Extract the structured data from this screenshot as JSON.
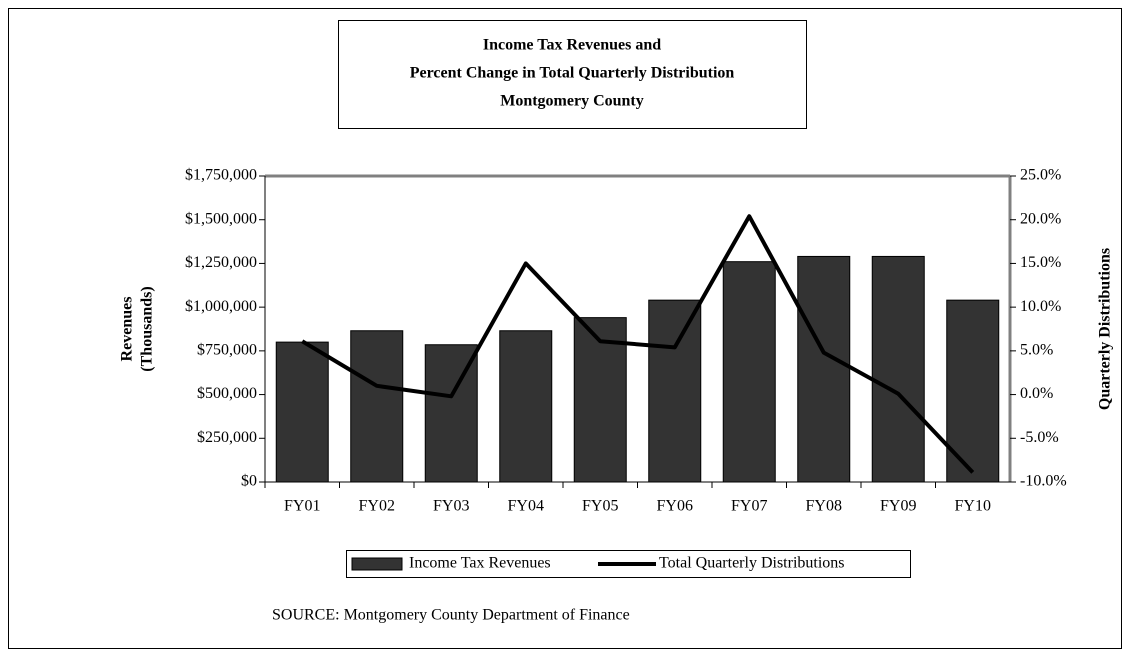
{
  "chart_data": {
    "type": "bar-line",
    "title": [
      "Income Tax Revenues and",
      "Percent Change in Total Quarterly Distribution",
      "Montgomery County"
    ],
    "y_label": [
      "Revenues",
      "(Thousands)"
    ],
    "y2_label": "Quarterly Distributions",
    "categories": [
      "FY01",
      "FY02",
      "FY03",
      "FY04",
      "FY05",
      "FY06",
      "FY07",
      "FY08",
      "FY09",
      "FY10"
    ],
    "series": [
      {
        "name": "Income Tax Revenues",
        "type": "bar",
        "color": "#333333",
        "values": [
          800000,
          865000,
          785000,
          865000,
          940000,
          1040000,
          1260000,
          1290000,
          1290000,
          1040000
        ]
      },
      {
        "name": "Total Quarterly Distributions",
        "type": "line",
        "axis": "y2",
        "color": "#000000",
        "values": [
          6.1,
          1.0,
          -0.2,
          15.0,
          6.1,
          5.4,
          20.4,
          4.8,
          0.1,
          -8.9
        ]
      }
    ],
    "ylim": [
      0,
      1750000
    ],
    "yticks": [
      {
        "value": 0,
        "label": "$0"
      },
      {
        "value": 250000,
        "label": "$250,000"
      },
      {
        "value": 500000,
        "label": "$500,000"
      },
      {
        "value": 750000,
        "label": "$750,000"
      },
      {
        "value": 1000000,
        "label": "$1,000,000"
      },
      {
        "value": 1250000,
        "label": "$1,250,000"
      },
      {
        "value": 1500000,
        "label": "$1,500,000"
      },
      {
        "value": 1750000,
        "label": "$1,750,000"
      }
    ],
    "y2lim": [
      -10,
      25
    ],
    "y2ticks": [
      {
        "value": -10,
        "label": "-10.0%"
      },
      {
        "value": -5,
        "label": "-5.0%"
      },
      {
        "value": 0,
        "label": "0.0%"
      },
      {
        "value": 5,
        "label": "5.0%"
      },
      {
        "value": 10,
        "label": "10.0%"
      },
      {
        "value": 15,
        "label": "15.0%"
      },
      {
        "value": 20,
        "label": "20.0%"
      },
      {
        "value": 25,
        "label": "25.0%"
      }
    ],
    "grid": false,
    "legend": "bottom",
    "source": "SOURCE:  Montgomery County Department of Finance"
  }
}
